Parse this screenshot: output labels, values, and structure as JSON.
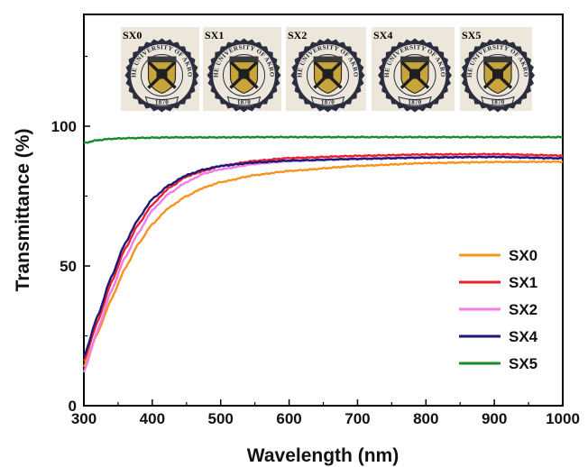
{
  "chart_data": {
    "type": "line",
    "title": "",
    "xlabel": "Wavelength (nm)",
    "ylabel": "Transmittance (%)",
    "xlim": [
      300,
      1000
    ],
    "ylim": [
      0,
      140
    ],
    "x_ticks": [
      300,
      400,
      500,
      600,
      700,
      800,
      900,
      1000
    ],
    "y_ticks": [
      0,
      50,
      100
    ],
    "x_tick_labels": [
      "300",
      "400",
      "500",
      "600",
      "700",
      "800",
      "900",
      "1000"
    ],
    "y_tick_labels": [
      "0",
      "50",
      "100"
    ],
    "grid": false,
    "legend_position": "bottom-right",
    "x": [
      300,
      320,
      340,
      360,
      380,
      400,
      425,
      450,
      475,
      500,
      550,
      600,
      700,
      800,
      900,
      1000
    ],
    "series": [
      {
        "name": "SX0",
        "color": "#f7941d",
        "values": [
          14,
          26,
          38,
          49,
          58,
          65,
          71,
          75,
          78,
          80,
          82.5,
          84,
          85.8,
          86.8,
          87.2,
          87.3
        ]
      },
      {
        "name": "SX1",
        "color": "#e8212e",
        "values": [
          16,
          30,
          44,
          56,
          65,
          72,
          78,
          82,
          84,
          85.8,
          87.6,
          88.6,
          89.4,
          89.9,
          90,
          89.5
        ]
      },
      {
        "name": "SX2",
        "color": "#f27ce6",
        "values": [
          12,
          27,
          41,
          53,
          62,
          70,
          76,
          80,
          83,
          84.6,
          86.5,
          87.5,
          88.4,
          88.9,
          89.2,
          88.6
        ]
      },
      {
        "name": "SX4",
        "color": "#1b1a7a",
        "values": [
          17.5,
          32,
          46,
          58,
          67,
          74,
          79,
          82.5,
          84.5,
          85.8,
          87,
          87.7,
          88.3,
          88.8,
          89,
          88.5
        ]
      },
      {
        "name": "SX5",
        "color": "#1a8a2a",
        "values": [
          94,
          95,
          95.5,
          95.7,
          95.8,
          95.9,
          96,
          96,
          96,
          96,
          96.1,
          96.1,
          96.1,
          96.1,
          96.1,
          96.1
        ]
      }
    ]
  },
  "inset": {
    "samples": [
      {
        "label": "SX0"
      },
      {
        "label": "SX1"
      },
      {
        "label": "SX2"
      },
      {
        "label": "SX4"
      },
      {
        "label": "SX5"
      }
    ],
    "seal": {
      "top_text": "THE UNIVERSITY OF AKRON",
      "year": "1870",
      "paper_color": "#ece7da",
      "ring_color": "#2a2e3f",
      "shield_color": "#c9a43a"
    }
  }
}
